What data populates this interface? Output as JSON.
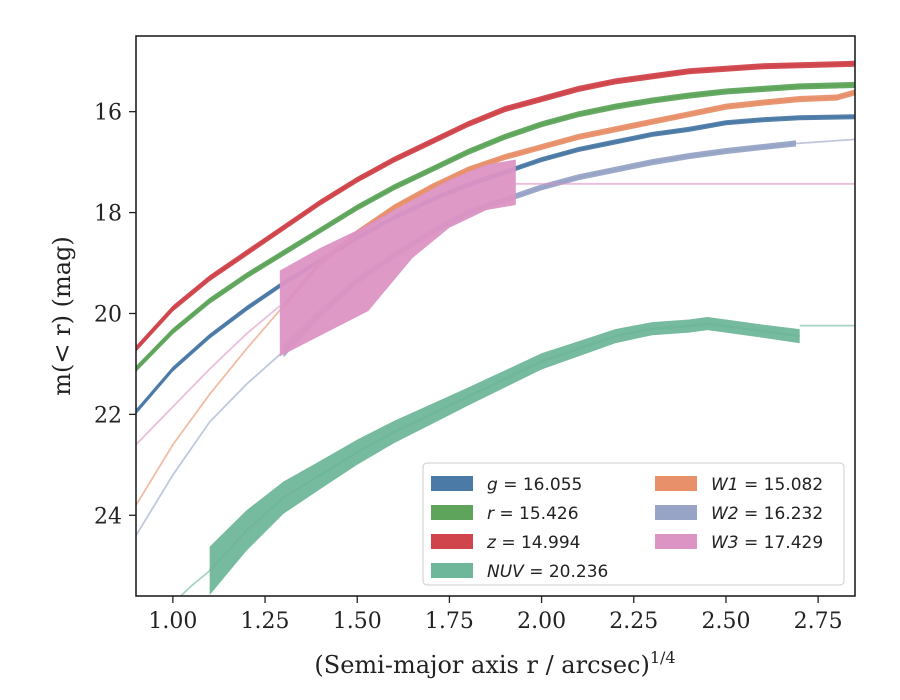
{
  "chart_data": {
    "type": "line",
    "title": "",
    "xlabel": "(Semi-major axis r / arcsec)",
    "xlabel_exponent": "1/4",
    "ylabel": "m(< r) (mag)",
    "xlim": [
      0.9,
      2.85
    ],
    "ylim": [
      25.6,
      14.5
    ],
    "y_inverted": true,
    "grid": false,
    "legend_placement": "lower-right",
    "xticks": [
      "1.00",
      "1.25",
      "1.50",
      "1.75",
      "2.00",
      "2.25",
      "2.50",
      "2.75"
    ],
    "yticks": [
      "16",
      "18",
      "20",
      "22",
      "24"
    ],
    "series": [
      {
        "name": "g",
        "value": "16.055",
        "color": "#4c7aa6",
        "x": [
          0.9,
          1.0,
          1.1,
          1.2,
          1.3,
          1.4,
          1.5,
          1.6,
          1.7,
          1.8,
          1.9,
          2.0,
          2.1,
          2.2,
          2.3,
          2.4,
          2.5,
          2.6,
          2.7,
          2.85
        ],
        "y": [
          21.95,
          21.1,
          20.45,
          19.9,
          19.4,
          18.95,
          18.5,
          18.1,
          17.75,
          17.45,
          17.2,
          16.95,
          16.75,
          16.6,
          16.45,
          16.35,
          16.22,
          16.16,
          16.12,
          16.1
        ],
        "band": [
          0.05,
          0.05,
          0.05,
          0.05,
          0.05,
          0.05,
          0.05,
          0.05,
          0.05,
          0.05,
          0.05,
          0.05,
          0.05,
          0.05,
          0.05,
          0.05,
          0.05,
          0.05,
          0.05,
          0.05
        ]
      },
      {
        "name": "r",
        "value": "15.426",
        "color": "#5ea55b",
        "x": [
          0.9,
          1.0,
          1.1,
          1.2,
          1.3,
          1.4,
          1.5,
          1.6,
          1.7,
          1.8,
          1.9,
          2.0,
          2.1,
          2.2,
          2.3,
          2.4,
          2.5,
          2.6,
          2.7,
          2.85
        ],
        "y": [
          21.1,
          20.35,
          19.75,
          19.25,
          18.8,
          18.35,
          17.9,
          17.5,
          17.15,
          16.8,
          16.5,
          16.25,
          16.05,
          15.9,
          15.78,
          15.68,
          15.6,
          15.55,
          15.5,
          15.47
        ],
        "band": [
          0.06,
          0.06,
          0.06,
          0.06,
          0.06,
          0.06,
          0.06,
          0.06,
          0.06,
          0.06,
          0.06,
          0.06,
          0.06,
          0.06,
          0.06,
          0.06,
          0.06,
          0.06,
          0.06,
          0.06
        ]
      },
      {
        "name": "z",
        "value": "14.994",
        "color": "#d0444b",
        "x": [
          0.9,
          1.0,
          1.1,
          1.2,
          1.3,
          1.4,
          1.5,
          1.6,
          1.7,
          1.8,
          1.9,
          2.0,
          2.1,
          2.2,
          2.3,
          2.4,
          2.5,
          2.6,
          2.7,
          2.85
        ],
        "y": [
          20.7,
          19.9,
          19.3,
          18.8,
          18.3,
          17.8,
          17.35,
          16.95,
          16.6,
          16.25,
          15.95,
          15.75,
          15.55,
          15.4,
          15.3,
          15.2,
          15.15,
          15.1,
          15.08,
          15.05
        ],
        "band": [
          0.06,
          0.06,
          0.06,
          0.06,
          0.06,
          0.06,
          0.06,
          0.06,
          0.06,
          0.06,
          0.06,
          0.06,
          0.06,
          0.06,
          0.06,
          0.06,
          0.06,
          0.06,
          0.06,
          0.06
        ]
      },
      {
        "name": "NUV",
        "value": "20.236",
        "color": "#6fb79a",
        "x": [
          1.1,
          1.2,
          1.3,
          1.4,
          1.5,
          1.6,
          1.7,
          1.8,
          1.9,
          2.0,
          2.1,
          2.2,
          2.3,
          2.4,
          2.45,
          2.5,
          2.6,
          2.7
        ],
        "y": [
          25.1,
          24.3,
          23.65,
          23.2,
          22.75,
          22.35,
          22.0,
          21.65,
          21.3,
          20.95,
          20.7,
          20.45,
          20.3,
          20.25,
          20.2,
          20.25,
          20.35,
          20.45
        ],
        "band": [
          0.48,
          0.4,
          0.32,
          0.28,
          0.25,
          0.22,
          0.2,
          0.18,
          0.17,
          0.16,
          0.15,
          0.14,
          0.13,
          0.13,
          0.13,
          0.13,
          0.13,
          0.14
        ],
        "faint_before": {
          "x": [
            0.9,
            0.95,
            1.0,
            1.05,
            1.1
          ],
          "y": [
            26.6,
            26.1,
            25.75,
            25.4,
            25.1
          ]
        },
        "faint_after": {
          "x": [
            2.7,
            2.85
          ],
          "y": [
            20.24,
            20.24
          ]
        }
      },
      {
        "name": "W1",
        "value": "15.082",
        "color": "#e8906a",
        "x": [
          1.3,
          1.4,
          1.5,
          1.6,
          1.7,
          1.8,
          1.9,
          2.0,
          2.1,
          2.2,
          2.3,
          2.4,
          2.5,
          2.6,
          2.7,
          2.8,
          2.85
        ],
        "y": [
          19.85,
          19.0,
          18.4,
          17.9,
          17.5,
          17.15,
          16.9,
          16.7,
          16.5,
          16.35,
          16.2,
          16.05,
          15.9,
          15.82,
          15.75,
          15.72,
          15.62
        ],
        "band": [
          0.06,
          0.06,
          0.06,
          0.06,
          0.06,
          0.06,
          0.06,
          0.06,
          0.06,
          0.06,
          0.06,
          0.06,
          0.06,
          0.06,
          0.06,
          0.06,
          0.06
        ],
        "faint_before": {
          "x": [
            0.9,
            1.0,
            1.1,
            1.2,
            1.3
          ],
          "y": [
            23.8,
            22.6,
            21.6,
            20.7,
            19.85
          ]
        }
      },
      {
        "name": "W2",
        "value": "16.232",
        "color": "#97a4c6",
        "x": [
          1.3,
          1.4,
          1.5,
          1.6,
          1.7,
          1.8,
          1.9,
          2.0,
          2.1,
          2.2,
          2.3,
          2.4,
          2.5,
          2.6,
          2.69
        ],
        "y": [
          20.75,
          20.0,
          19.35,
          18.85,
          18.4,
          18.0,
          17.75,
          17.5,
          17.3,
          17.15,
          17.0,
          16.88,
          16.78,
          16.7,
          16.63
        ],
        "band": [
          0.12,
          0.09,
          0.08,
          0.07,
          0.07,
          0.07,
          0.06,
          0.06,
          0.06,
          0.06,
          0.06,
          0.06,
          0.06,
          0.06,
          0.06
        ],
        "faint_before": {
          "x": [
            0.9,
            1.0,
            1.1,
            1.2,
            1.3
          ],
          "y": [
            24.4,
            23.2,
            22.15,
            21.4,
            20.75
          ]
        },
        "faint_after": {
          "x": [
            2.69,
            2.85
          ],
          "y": [
            16.63,
            16.55
          ]
        }
      },
      {
        "name": "W3",
        "value": "17.429",
        "color": "#dc94c4",
        "band_polygon": {
          "x": [
            1.29,
            1.53,
            1.65,
            1.75,
            1.85,
            1.93,
            1.93,
            1.85,
            1.75,
            1.65,
            1.5,
            1.4,
            1.29
          ],
          "y": [
            20.85,
            19.95,
            18.9,
            18.3,
            17.95,
            17.85,
            16.95,
            17.05,
            17.35,
            17.75,
            18.35,
            18.7,
            19.15
          ]
        },
        "faint_before": {
          "x": [
            0.9,
            1.0,
            1.1,
            1.2,
            1.29
          ],
          "y": [
            22.6,
            21.85,
            21.1,
            20.4,
            19.85
          ]
        },
        "faint_after": {
          "x": [
            1.93,
            2.85
          ],
          "y": [
            17.43,
            17.43
          ]
        }
      }
    ]
  }
}
